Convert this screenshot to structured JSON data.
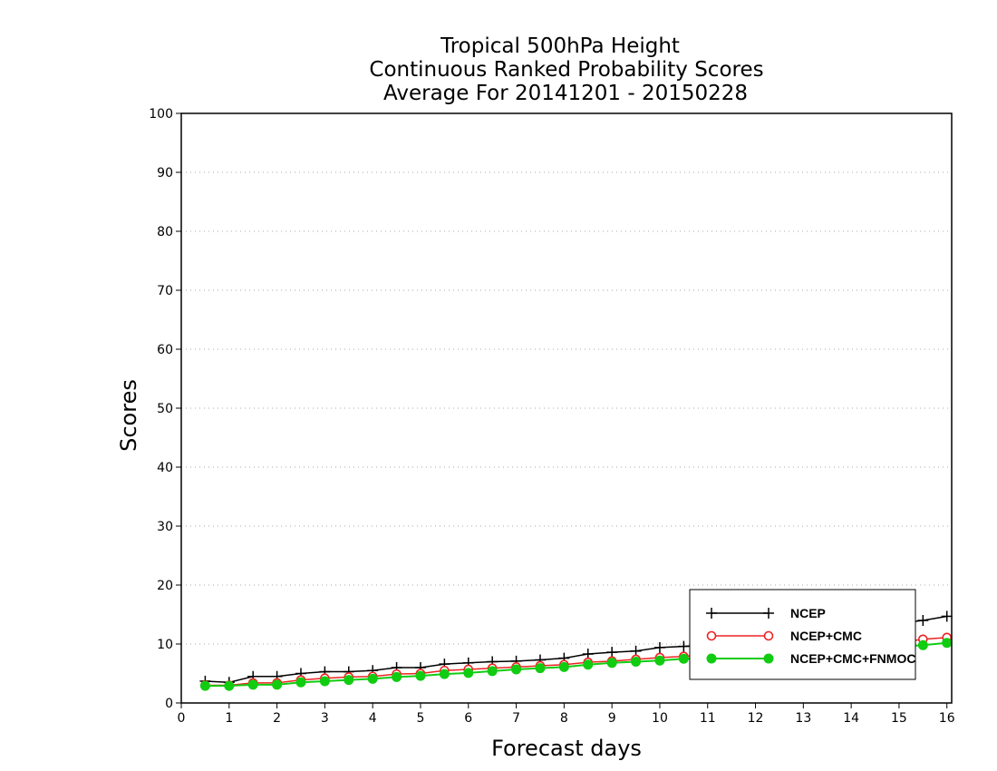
{
  "chart_data": {
    "type": "line",
    "title_lines": [
      "Tropical 500hPa Height",
      "Continuous Ranked Probability Scores",
      "Average For 20141201 - 20150228"
    ],
    "xlabel": "Forecast days",
    "ylabel": "Scores",
    "xlim": [
      0,
      16.1
    ],
    "ylim": [
      0,
      100
    ],
    "x_ticks": [
      0,
      1,
      2,
      3,
      4,
      5,
      6,
      7,
      8,
      9,
      10,
      11,
      12,
      13,
      14,
      15,
      16
    ],
    "y_ticks": [
      0,
      10,
      20,
      30,
      40,
      50,
      60,
      70,
      80,
      90,
      100
    ],
    "grid": "horizontal dotted",
    "legend_position": "bottom-right",
    "x": [
      0.5,
      1,
      1.5,
      2,
      2.5,
      3,
      3.5,
      4,
      4.5,
      5,
      5.5,
      6,
      6.5,
      7,
      7.5,
      8,
      8.5,
      9,
      9.5,
      10,
      10.5,
      11,
      11.5,
      12,
      12.5,
      13,
      13.5,
      14,
      14.5,
      15,
      15.5,
      16
    ],
    "series": [
      {
        "name": "NCEP",
        "color": "#000000",
        "marker": "plus",
        "values": [
          3.7,
          3.5,
          4.5,
          4.5,
          5.0,
          5.3,
          5.3,
          5.5,
          6.0,
          6.0,
          6.6,
          6.8,
          7.0,
          7.1,
          7.3,
          7.6,
          8.3,
          8.6,
          8.8,
          9.4,
          9.6,
          9.9,
          10.3,
          10.7,
          11.0,
          11.5,
          12.0,
          12.5,
          13.0,
          13.5,
          14.0,
          14.7
        ]
      },
      {
        "name": "NCEP+CMC",
        "color": "#ee2222",
        "marker": "open-circle",
        "values": [
          3.0,
          3.0,
          3.4,
          3.4,
          3.9,
          4.2,
          4.4,
          4.5,
          4.9,
          5.0,
          5.5,
          5.7,
          5.9,
          6.1,
          6.3,
          6.5,
          6.9,
          7.1,
          7.4,
          7.7,
          7.9,
          8.2,
          8.5,
          8.8,
          9.0,
          9.3,
          9.6,
          9.8,
          10.0,
          10.3,
          10.8,
          11.1
        ]
      },
      {
        "name": "NCEP+CMC+FNMOC",
        "color": "#11cc11",
        "marker": "filled-circle",
        "values": [
          2.9,
          2.9,
          3.1,
          3.1,
          3.5,
          3.7,
          3.9,
          4.1,
          4.4,
          4.6,
          4.9,
          5.1,
          5.4,
          5.7,
          5.9,
          6.1,
          6.5,
          6.8,
          7.0,
          7.2,
          7.5,
          7.7,
          8.0,
          8.2,
          8.4,
          8.7,
          8.9,
          9.1,
          9.3,
          9.6,
          9.8,
          10.2
        ]
      }
    ]
  }
}
